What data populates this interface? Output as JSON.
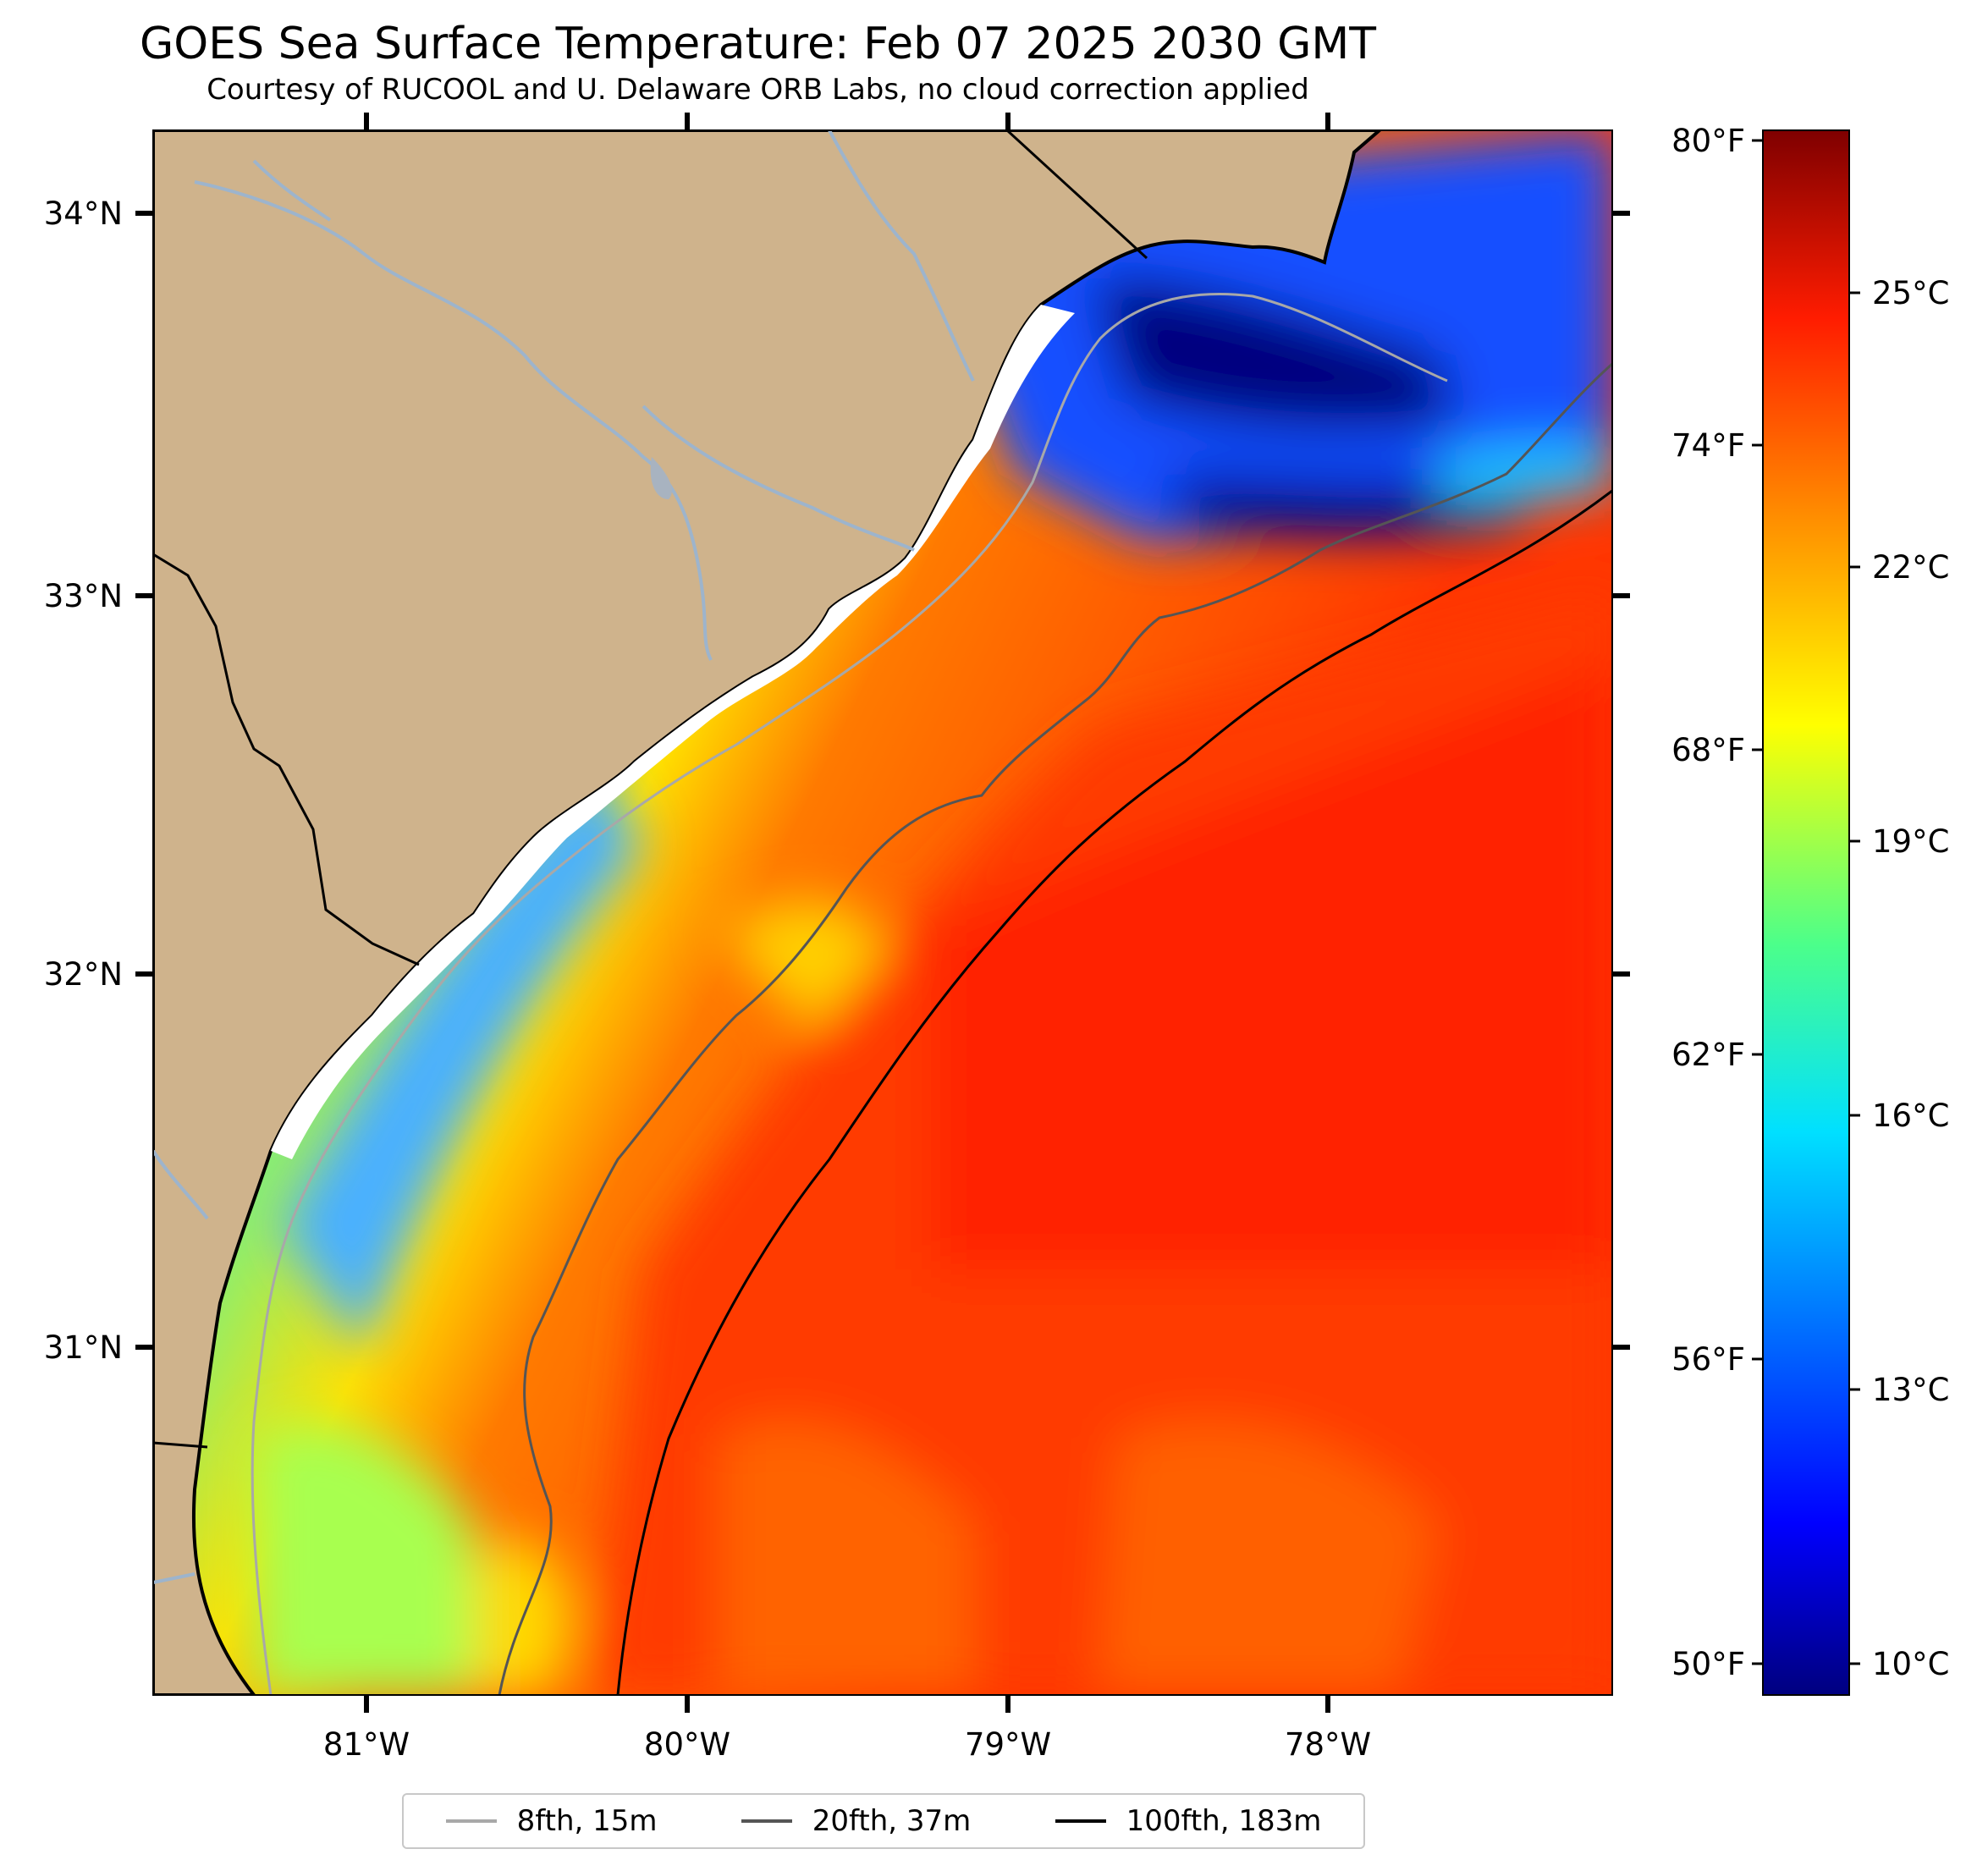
{
  "header": {
    "title": "GOES Sea Surface Temperature: Feb 07 2025 2030 GMT",
    "subtitle": "Courtesy of RUCOOL and U. Delaware ORB Labs, no cloud correction applied"
  },
  "map": {
    "lat_labels": [
      "34°N",
      "33°N",
      "32°N",
      "31°N"
    ],
    "lon_labels": [
      "81°W",
      "80°W",
      "79°W",
      "78°W"
    ],
    "extent": {
      "lon_min": -81.67,
      "lon_max": -77.12,
      "lat_min": 30.22,
      "lat_max": 34.22
    },
    "colors": {
      "land": "#cfb38c",
      "coastline": "#000000",
      "rivers": "#9db4cc"
    }
  },
  "colorbar": {
    "fahrenheit_labels": [
      "80°F",
      "74°F",
      "68°F",
      "62°F",
      "56°F",
      "50°F"
    ],
    "celsius_labels": [
      "25°C",
      "22°C",
      "19°C",
      "16°C",
      "13°C",
      "10°C"
    ],
    "range_celsius": [
      9.5,
      26.7
    ]
  },
  "legend": {
    "items": [
      {
        "label": "8fth, 15m",
        "color": "#a8a8a8"
      },
      {
        "label": "20fth, 37m",
        "color": "#555555"
      },
      {
        "label": "100fth, 183m",
        "color": "#000000"
      }
    ]
  }
}
